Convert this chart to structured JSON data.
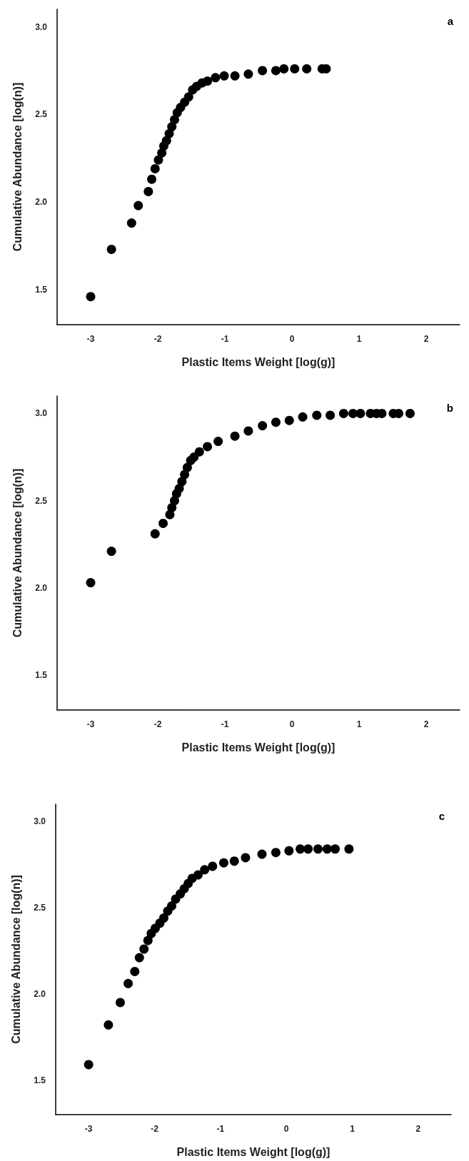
{
  "chart_data": [
    {
      "type": "scatter",
      "title": "a",
      "xlabel": "Plastic Items Weight [log(g)]",
      "ylabel": "Cumulative Abundance [log(n)]",
      "xlim": [
        -3.5,
        2.5
      ],
      "xticks": [
        -3,
        -2,
        -1,
        0,
        1,
        2
      ],
      "ylim": [
        1.3,
        3.1
      ],
      "yticks": [
        {
          "value": 1.5,
          "label": "1.5"
        },
        {
          "value": 2,
          "label": "2.0"
        },
        {
          "value": 2.5,
          "label": "2.5"
        },
        {
          "value": 3,
          "label": "3.0"
        }
      ],
      "grid": false,
      "marker": "circle",
      "series": [
        {
          "color": "#000000",
          "x": [
            -3.0,
            -2.69,
            -2.39,
            -2.29,
            -2.14,
            -2.09,
            -2.04,
            -1.99,
            -1.94,
            -1.91,
            -1.87,
            -1.83,
            -1.79,
            -1.75,
            -1.71,
            -1.66,
            -1.6,
            -1.54,
            -1.48,
            -1.42,
            -1.34,
            -1.26,
            -1.14,
            -1.01,
            -0.85,
            -0.65,
            -0.44,
            -0.24,
            -0.12,
            0.04,
            0.22,
            0.45,
            0.51
          ],
          "values": [
            1.46,
            1.73,
            1.88,
            1.98,
            2.06,
            2.13,
            2.19,
            2.24,
            2.28,
            2.32,
            2.35,
            2.39,
            2.43,
            2.47,
            2.51,
            2.54,
            2.57,
            2.6,
            2.64,
            2.66,
            2.68,
            2.69,
            2.71,
            2.72,
            2.72,
            2.73,
            2.75,
            2.75,
            2.76,
            2.76,
            2.76,
            2.76,
            2.76
          ]
        }
      ]
    },
    {
      "type": "scatter",
      "title": "b",
      "xlabel": "Plastic Items Weight [log(g)]",
      "ylabel": "Cumulative Abundance [log(n)]",
      "xlim": [
        -3.5,
        2.5
      ],
      "xticks": [
        -3,
        -2,
        -1,
        0,
        1,
        2
      ],
      "ylim": [
        1.3,
        3.1
      ],
      "yticks": [
        {
          "value": 1.5,
          "label": "1.5"
        },
        {
          "value": 2,
          "label": "2.0"
        },
        {
          "value": 2.5,
          "label": "2.5"
        },
        {
          "value": 3,
          "label": "3.0"
        }
      ],
      "grid": false,
      "marker": "circle",
      "series": [
        {
          "color": "#000000",
          "x": [
            -3.0,
            -2.69,
            -2.04,
            -1.92,
            -1.82,
            -1.79,
            -1.75,
            -1.72,
            -1.68,
            -1.64,
            -1.6,
            -1.56,
            -1.51,
            -1.46,
            -1.38,
            -1.26,
            -1.1,
            -0.85,
            -0.65,
            -0.44,
            -0.24,
            -0.04,
            0.16,
            0.37,
            0.57,
            0.77,
            0.91,
            1.02,
            1.17,
            1.26,
            1.34,
            1.51,
            1.59,
            1.76
          ],
          "values": [
            2.03,
            2.21,
            2.31,
            2.37,
            2.42,
            2.46,
            2.5,
            2.54,
            2.57,
            2.61,
            2.65,
            2.69,
            2.73,
            2.75,
            2.78,
            2.81,
            2.84,
            2.87,
            2.9,
            2.93,
            2.95,
            2.96,
            2.98,
            2.99,
            2.99,
            3.0,
            3.0,
            3.0,
            3.0,
            3.0,
            3.0,
            3.0,
            3.0,
            3.0
          ]
        }
      ]
    },
    {
      "type": "scatter",
      "title": "c",
      "xlabel": "Plastic Items Weight [log(g)]",
      "ylabel": "Cumulative Abundance [log(n)]",
      "xlim": [
        -3.5,
        2.5
      ],
      "xticks": [
        -3,
        -2,
        -1,
        0,
        1,
        2
      ],
      "ylim": [
        1.3,
        3.1
      ],
      "yticks": [
        {
          "value": 1.5,
          "label": "1.5"
        },
        {
          "value": 2,
          "label": "2.0"
        },
        {
          "value": 2.5,
          "label": "2.5"
        },
        {
          "value": 3,
          "label": "3.0"
        }
      ],
      "grid": false,
      "marker": "circle",
      "series": [
        {
          "color": "#000000",
          "x": [
            -3.0,
            -2.7,
            -2.52,
            -2.4,
            -2.3,
            -2.23,
            -2.16,
            -2.1,
            -2.05,
            -1.99,
            -1.92,
            -1.86,
            -1.8,
            -1.74,
            -1.68,
            -1.61,
            -1.55,
            -1.49,
            -1.43,
            -1.34,
            -1.24,
            -1.12,
            -0.95,
            -0.79,
            -0.62,
            -0.37,
            -0.16,
            0.04,
            0.21,
            0.33,
            0.48,
            0.62,
            0.74,
            0.95
          ],
          "values": [
            1.59,
            1.82,
            1.95,
            2.06,
            2.13,
            2.21,
            2.26,
            2.31,
            2.35,
            2.38,
            2.41,
            2.44,
            2.48,
            2.51,
            2.55,
            2.58,
            2.61,
            2.64,
            2.67,
            2.69,
            2.72,
            2.74,
            2.76,
            2.77,
            2.79,
            2.81,
            2.82,
            2.83,
            2.84,
            2.84,
            2.84,
            2.84,
            2.84,
            2.84
          ]
        }
      ]
    }
  ]
}
